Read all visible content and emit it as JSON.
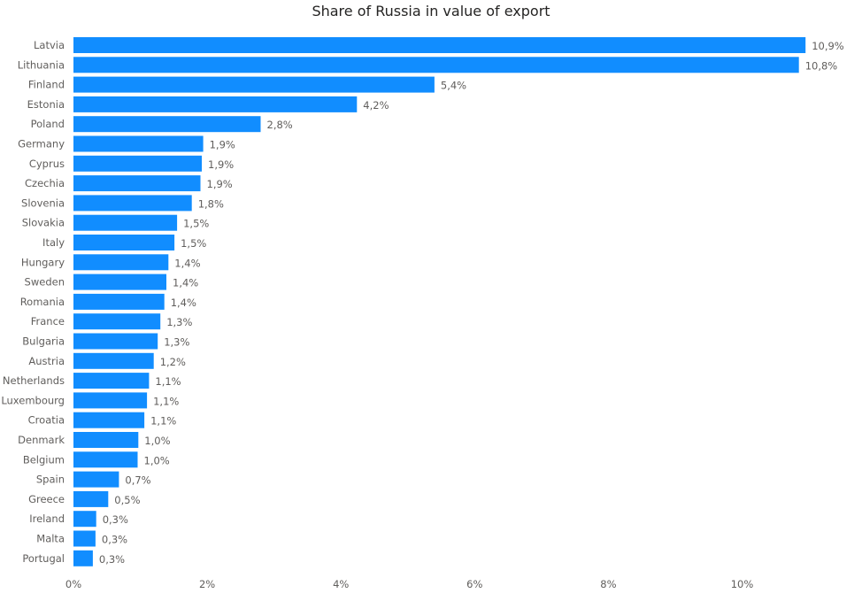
{
  "chart_data": {
    "type": "bar",
    "orientation": "horizontal",
    "title": "Share of Russia in value of export",
    "categories": [
      "Latvia",
      "Lithuania",
      "Finland",
      "Estonia",
      "Poland",
      "Germany",
      "Cyprus",
      "Czechia",
      "Slovenia",
      "Slovakia",
      "Italy",
      "Hungary",
      "Sweden",
      "Romania",
      "France",
      "Bulgaria",
      "Austria",
      "Netherlands",
      "Luxembourg",
      "Croatia",
      "Denmark",
      "Belgium",
      "Spain",
      "Greece",
      "Ireland",
      "Malta",
      "Portugal"
    ],
    "values": [
      10.95,
      10.85,
      5.4,
      4.24,
      2.8,
      1.94,
      1.92,
      1.9,
      1.77,
      1.55,
      1.51,
      1.42,
      1.39,
      1.36,
      1.3,
      1.26,
      1.2,
      1.13,
      1.1,
      1.06,
      0.97,
      0.96,
      0.68,
      0.52,
      0.34,
      0.33,
      0.29
    ],
    "data_labels": [
      "10,9%",
      "10,8%",
      "5,4%",
      "4,2%",
      "2,8%",
      "1,9%",
      "1,9%",
      "1,9%",
      "1,8%",
      "1,5%",
      "1,5%",
      "1,4%",
      "1,4%",
      "1,4%",
      "1,3%",
      "1,3%",
      "1,2%",
      "1,1%",
      "1,1%",
      "1,1%",
      "1,0%",
      "1,0%",
      "0,7%",
      "0,5%",
      "0,3%",
      "0,3%",
      "0,3%"
    ],
    "xlim": [
      0,
      11
    ],
    "x_ticks": [
      0,
      2,
      4,
      6,
      8,
      10
    ],
    "x_tick_labels": [
      "0%",
      "2%",
      "4%",
      "6%",
      "8%",
      "10%"
    ],
    "grid": false,
    "legend": "none",
    "bar_color": "#118DFF"
  }
}
